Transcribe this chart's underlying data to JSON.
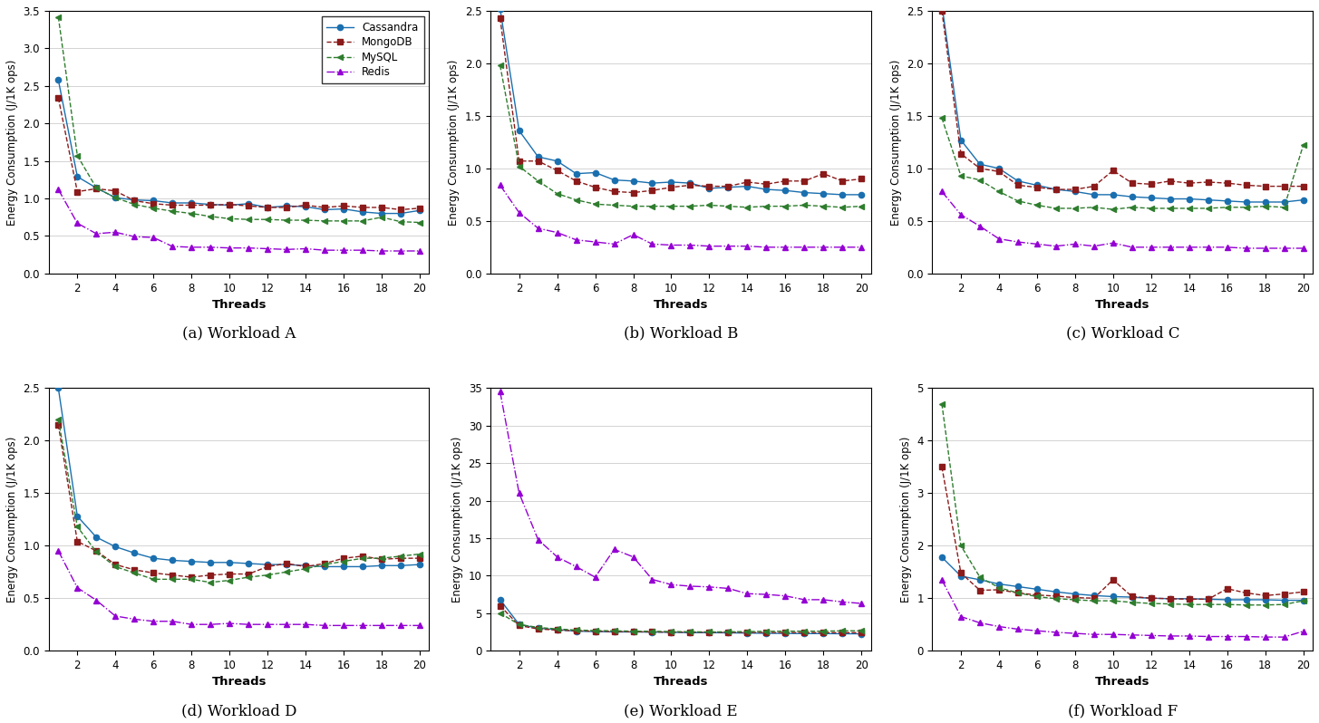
{
  "threads": [
    1,
    2,
    3,
    4,
    5,
    6,
    7,
    8,
    9,
    10,
    11,
    12,
    13,
    14,
    15,
    16,
    17,
    18,
    19,
    20
  ],
  "workloads": {
    "A": {
      "cassandra": [
        2.58,
        1.29,
        1.14,
        1.01,
        0.98,
        0.97,
        0.94,
        0.94,
        0.92,
        0.91,
        0.93,
        0.88,
        0.9,
        0.89,
        0.85,
        0.86,
        0.82,
        0.8,
        0.8,
        0.84
      ],
      "mongodb": [
        2.34,
        1.09,
        1.13,
        1.1,
        0.97,
        0.93,
        0.91,
        0.91,
        0.91,
        0.92,
        0.9,
        0.88,
        0.88,
        0.91,
        0.88,
        0.9,
        0.88,
        0.88,
        0.85,
        0.87
      ],
      "mysql": [
        3.42,
        1.57,
        1.14,
        1.01,
        0.92,
        0.87,
        0.83,
        0.8,
        0.76,
        0.73,
        0.72,
        0.72,
        0.71,
        0.71,
        0.7,
        0.7,
        0.7,
        0.75,
        0.69,
        0.68
      ],
      "redis": [
        1.12,
        0.67,
        0.53,
        0.55,
        0.49,
        0.48,
        0.36,
        0.35,
        0.35,
        0.34,
        0.34,
        0.33,
        0.32,
        0.33,
        0.31,
        0.31,
        0.31,
        0.3,
        0.3,
        0.3
      ],
      "ylim": [
        0,
        3.5
      ],
      "yticks": [
        0.0,
        0.5,
        1.0,
        1.5,
        2.0,
        2.5,
        3.0,
        3.5
      ]
    },
    "B": {
      "cassandra": [
        2.52,
        1.36,
        1.11,
        1.07,
        0.95,
        0.96,
        0.89,
        0.88,
        0.86,
        0.87,
        0.86,
        0.81,
        0.82,
        0.83,
        0.8,
        0.79,
        0.77,
        0.76,
        0.75,
        0.75
      ],
      "mongodb": [
        2.43,
        1.07,
        1.07,
        0.98,
        0.88,
        0.82,
        0.78,
        0.77,
        0.79,
        0.82,
        0.84,
        0.83,
        0.83,
        0.87,
        0.85,
        0.88,
        0.88,
        0.95,
        0.88,
        0.9
      ],
      "mysql": [
        1.98,
        1.02,
        0.88,
        0.76,
        0.7,
        0.66,
        0.65,
        0.64,
        0.64,
        0.64,
        0.64,
        0.65,
        0.64,
        0.63,
        0.64,
        0.64,
        0.65,
        0.64,
        0.63,
        0.64
      ],
      "redis": [
        0.84,
        0.58,
        0.43,
        0.39,
        0.32,
        0.3,
        0.28,
        0.37,
        0.28,
        0.27,
        0.27,
        0.26,
        0.26,
        0.26,
        0.25,
        0.25,
        0.25,
        0.25,
        0.25,
        0.25
      ],
      "ylim": [
        0,
        2.5
      ],
      "yticks": [
        0.0,
        0.5,
        1.0,
        1.5,
        2.0,
        2.5
      ]
    },
    "C": {
      "cassandra": [
        2.56,
        1.27,
        1.04,
        1.0,
        0.88,
        0.84,
        0.8,
        0.78,
        0.75,
        0.75,
        0.73,
        0.72,
        0.71,
        0.71,
        0.7,
        0.69,
        0.68,
        0.68,
        0.68,
        0.7
      ],
      "mongodb": [
        2.5,
        1.14,
        1.0,
        0.97,
        0.84,
        0.82,
        0.8,
        0.8,
        0.83,
        0.98,
        0.86,
        0.85,
        0.88,
        0.86,
        0.87,
        0.86,
        0.84,
        0.83,
        0.83,
        0.83
      ],
      "mysql": [
        1.48,
        0.93,
        0.89,
        0.78,
        0.69,
        0.65,
        0.62,
        0.62,
        0.63,
        0.61,
        0.63,
        0.62,
        0.62,
        0.62,
        0.62,
        0.63,
        0.63,
        0.64,
        0.63,
        1.22
      ],
      "redis": [
        0.78,
        0.56,
        0.45,
        0.33,
        0.3,
        0.28,
        0.26,
        0.28,
        0.26,
        0.29,
        0.25,
        0.25,
        0.25,
        0.25,
        0.25,
        0.25,
        0.24,
        0.24,
        0.24,
        0.24
      ],
      "ylim": [
        0,
        2.5
      ],
      "yticks": [
        0.0,
        0.5,
        1.0,
        1.5,
        2.0,
        2.5
      ]
    },
    "D": {
      "cassandra": [
        2.5,
        1.28,
        1.08,
        0.99,
        0.93,
        0.88,
        0.86,
        0.85,
        0.84,
        0.84,
        0.83,
        0.82,
        0.82,
        0.81,
        0.8,
        0.8,
        0.8,
        0.81,
        0.81,
        0.82
      ],
      "mongodb": [
        2.15,
        1.04,
        0.95,
        0.82,
        0.77,
        0.74,
        0.72,
        0.7,
        0.72,
        0.73,
        0.73,
        0.8,
        0.83,
        0.8,
        0.83,
        0.88,
        0.9,
        0.87,
        0.88,
        0.88
      ],
      "mysql": [
        2.2,
        1.18,
        0.94,
        0.8,
        0.74,
        0.68,
        0.68,
        0.68,
        0.65,
        0.67,
        0.7,
        0.72,
        0.75,
        0.78,
        0.82,
        0.85,
        0.88,
        0.88,
        0.9,
        0.92
      ],
      "redis": [
        0.95,
        0.6,
        0.48,
        0.33,
        0.3,
        0.28,
        0.28,
        0.25,
        0.25,
        0.26,
        0.25,
        0.25,
        0.25,
        0.25,
        0.24,
        0.24,
        0.24,
        0.24,
        0.24,
        0.24
      ],
      "ylim": [
        0,
        2.5
      ],
      "yticks": [
        0.0,
        0.5,
        1.0,
        1.5,
        2.0,
        2.5
      ]
    },
    "E": {
      "cassandra": [
        6.8,
        3.5,
        3.0,
        2.8,
        2.6,
        2.55,
        2.5,
        2.5,
        2.48,
        2.45,
        2.4,
        2.4,
        2.38,
        2.35,
        2.32,
        2.3,
        2.28,
        2.28,
        2.26,
        2.25
      ],
      "mongodb": [
        6.0,
        3.35,
        2.9,
        2.75,
        2.65,
        2.6,
        2.55,
        2.53,
        2.5,
        2.48,
        2.47,
        2.46,
        2.45,
        2.44,
        2.43,
        2.42,
        2.42,
        2.41,
        2.4,
        2.4
      ],
      "mysql": [
        5.0,
        3.5,
        3.1,
        2.9,
        2.75,
        2.68,
        2.65,
        2.6,
        2.58,
        2.55,
        2.52,
        2.5,
        2.52,
        2.55,
        2.58,
        2.6,
        2.6,
        2.6,
        2.65,
        2.65
      ],
      "redis": [
        34.5,
        21.0,
        14.8,
        12.5,
        11.2,
        9.8,
        13.5,
        12.5,
        9.5,
        8.8,
        8.6,
        8.5,
        8.3,
        7.6,
        7.5,
        7.3,
        6.8,
        6.8,
        6.5,
        6.3
      ],
      "ylim": [
        0,
        35
      ],
      "yticks": [
        0,
        5,
        10,
        15,
        20,
        25,
        30,
        35
      ]
    },
    "F": {
      "cassandra": [
        1.78,
        1.42,
        1.35,
        1.27,
        1.22,
        1.17,
        1.12,
        1.08,
        1.05,
        1.03,
        1.02,
        1.0,
        0.99,
        0.99,
        0.98,
        0.97,
        0.97,
        0.97,
        0.96,
        0.96
      ],
      "mongodb": [
        3.5,
        1.48,
        1.15,
        1.16,
        1.1,
        1.06,
        1.04,
        1.01,
        1.0,
        1.35,
        1.03,
        1.0,
        0.99,
        0.98,
        0.98,
        1.18,
        1.1,
        1.05,
        1.08,
        1.12
      ],
      "mysql": [
        4.7,
        2.0,
        1.4,
        1.2,
        1.1,
        1.03,
        0.99,
        0.97,
        0.95,
        0.95,
        0.92,
        0.9,
        0.89,
        0.88,
        0.88,
        0.88,
        0.87,
        0.87,
        0.88,
        0.95
      ],
      "redis": [
        1.35,
        0.65,
        0.53,
        0.46,
        0.41,
        0.38,
        0.35,
        0.33,
        0.31,
        0.31,
        0.3,
        0.29,
        0.28,
        0.28,
        0.27,
        0.27,
        0.27,
        0.26,
        0.26,
        0.37
      ],
      "ylim": [
        0,
        5
      ],
      "yticks": [
        0,
        1,
        2,
        3,
        4,
        5
      ]
    }
  },
  "colors": {
    "cassandra": "#1a6faf",
    "mongodb": "#8b1a1a",
    "mysql": "#2e7d2e",
    "redis": "#9400d3"
  },
  "db_order": [
    "cassandra",
    "mongodb",
    "mysql",
    "redis"
  ],
  "db_labels": [
    "Cassandra",
    "MongoDB",
    "MySQL",
    "Redis"
  ],
  "subplot_labels": [
    "(a) Workload A",
    "(b) Workload B",
    "(c) Workload C",
    "(d) Workload D",
    "(e) Workload E",
    "(f) Workload F"
  ],
  "ylabel": "Energy Consumption (J/1K ops)",
  "xlabel": "Threads"
}
